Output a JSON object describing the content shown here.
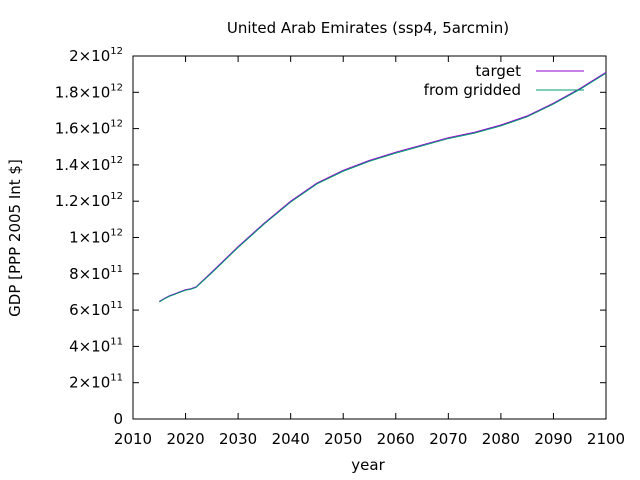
{
  "chart_data": {
    "type": "line",
    "title": "United Arab Emirates (ssp4, 5arcmin)",
    "xlabel": "year",
    "ylabel": "GDP [PPP 2005 Int $]",
    "xlim": [
      2010,
      2100
    ],
    "ylim": [
      0,
      2000000000000
    ],
    "x_ticks": [
      2010,
      2020,
      2030,
      2040,
      2050,
      2060,
      2070,
      2080,
      2090,
      2100
    ],
    "x_tick_labels": [
      "2010",
      "2020",
      "2030",
      "2040",
      "2050",
      "2060",
      "2070",
      "2080",
      "2090",
      "2100"
    ],
    "y_ticks": [
      {
        "value": 0,
        "mantissa": "0",
        "exponent": ""
      },
      {
        "value": 200000000000,
        "mantissa": "2×10",
        "exponent": "11"
      },
      {
        "value": 400000000000,
        "mantissa": "4×10",
        "exponent": "11"
      },
      {
        "value": 600000000000,
        "mantissa": "6×10",
        "exponent": "11"
      },
      {
        "value": 800000000000,
        "mantissa": "8×10",
        "exponent": "11"
      },
      {
        "value": 1000000000000,
        "mantissa": "1×10",
        "exponent": "12"
      },
      {
        "value": 1200000000000,
        "mantissa": "1.2×10",
        "exponent": "12"
      },
      {
        "value": 1400000000000,
        "mantissa": "1.4×10",
        "exponent": "12"
      },
      {
        "value": 1600000000000,
        "mantissa": "1.6×10",
        "exponent": "12"
      },
      {
        "value": 1800000000000,
        "mantissa": "1.8×10",
        "exponent": "12"
      },
      {
        "value": 2000000000000,
        "mantissa": "2×10",
        "exponent": "12"
      }
    ],
    "grid": false,
    "legend_position": "top-right",
    "series": [
      {
        "name": "target",
        "color": "#9400d3",
        "x": [
          2015,
          2016,
          2017,
          2018,
          2019,
          2020,
          2021,
          2022,
          2025,
          2030,
          2035,
          2040,
          2045,
          2050,
          2055,
          2060,
          2065,
          2070,
          2075,
          2080,
          2085,
          2090,
          2095,
          2100
        ],
        "y": [
          648000000000,
          665000000000,
          680000000000,
          690000000000,
          702000000000,
          712000000000,
          718000000000,
          728000000000,
          810000000000,
          950000000000,
          1080000000000,
          1200000000000,
          1300000000000,
          1370000000000,
          1425000000000,
          1470000000000,
          1510000000000,
          1550000000000,
          1580000000000,
          1620000000000,
          1670000000000,
          1740000000000,
          1820000000000,
          1910000000000
        ]
      },
      {
        "name": "from gridded",
        "color": "#009e73",
        "x": [
          2015,
          2016,
          2017,
          2018,
          2019,
          2020,
          2021,
          2022,
          2025,
          2030,
          2035,
          2040,
          2045,
          2050,
          2055,
          2060,
          2065,
          2070,
          2075,
          2080,
          2085,
          2090,
          2095,
          2100
        ],
        "y": [
          645000000000,
          662000000000,
          677000000000,
          687000000000,
          699000000000,
          709000000000,
          715000000000,
          725000000000,
          805000000000,
          945000000000,
          1075000000000,
          1195000000000,
          1295000000000,
          1365000000000,
          1420000000000,
          1465000000000,
          1505000000000,
          1545000000000,
          1575000000000,
          1615000000000,
          1665000000000,
          1735000000000,
          1815000000000,
          1905000000000
        ]
      }
    ]
  }
}
